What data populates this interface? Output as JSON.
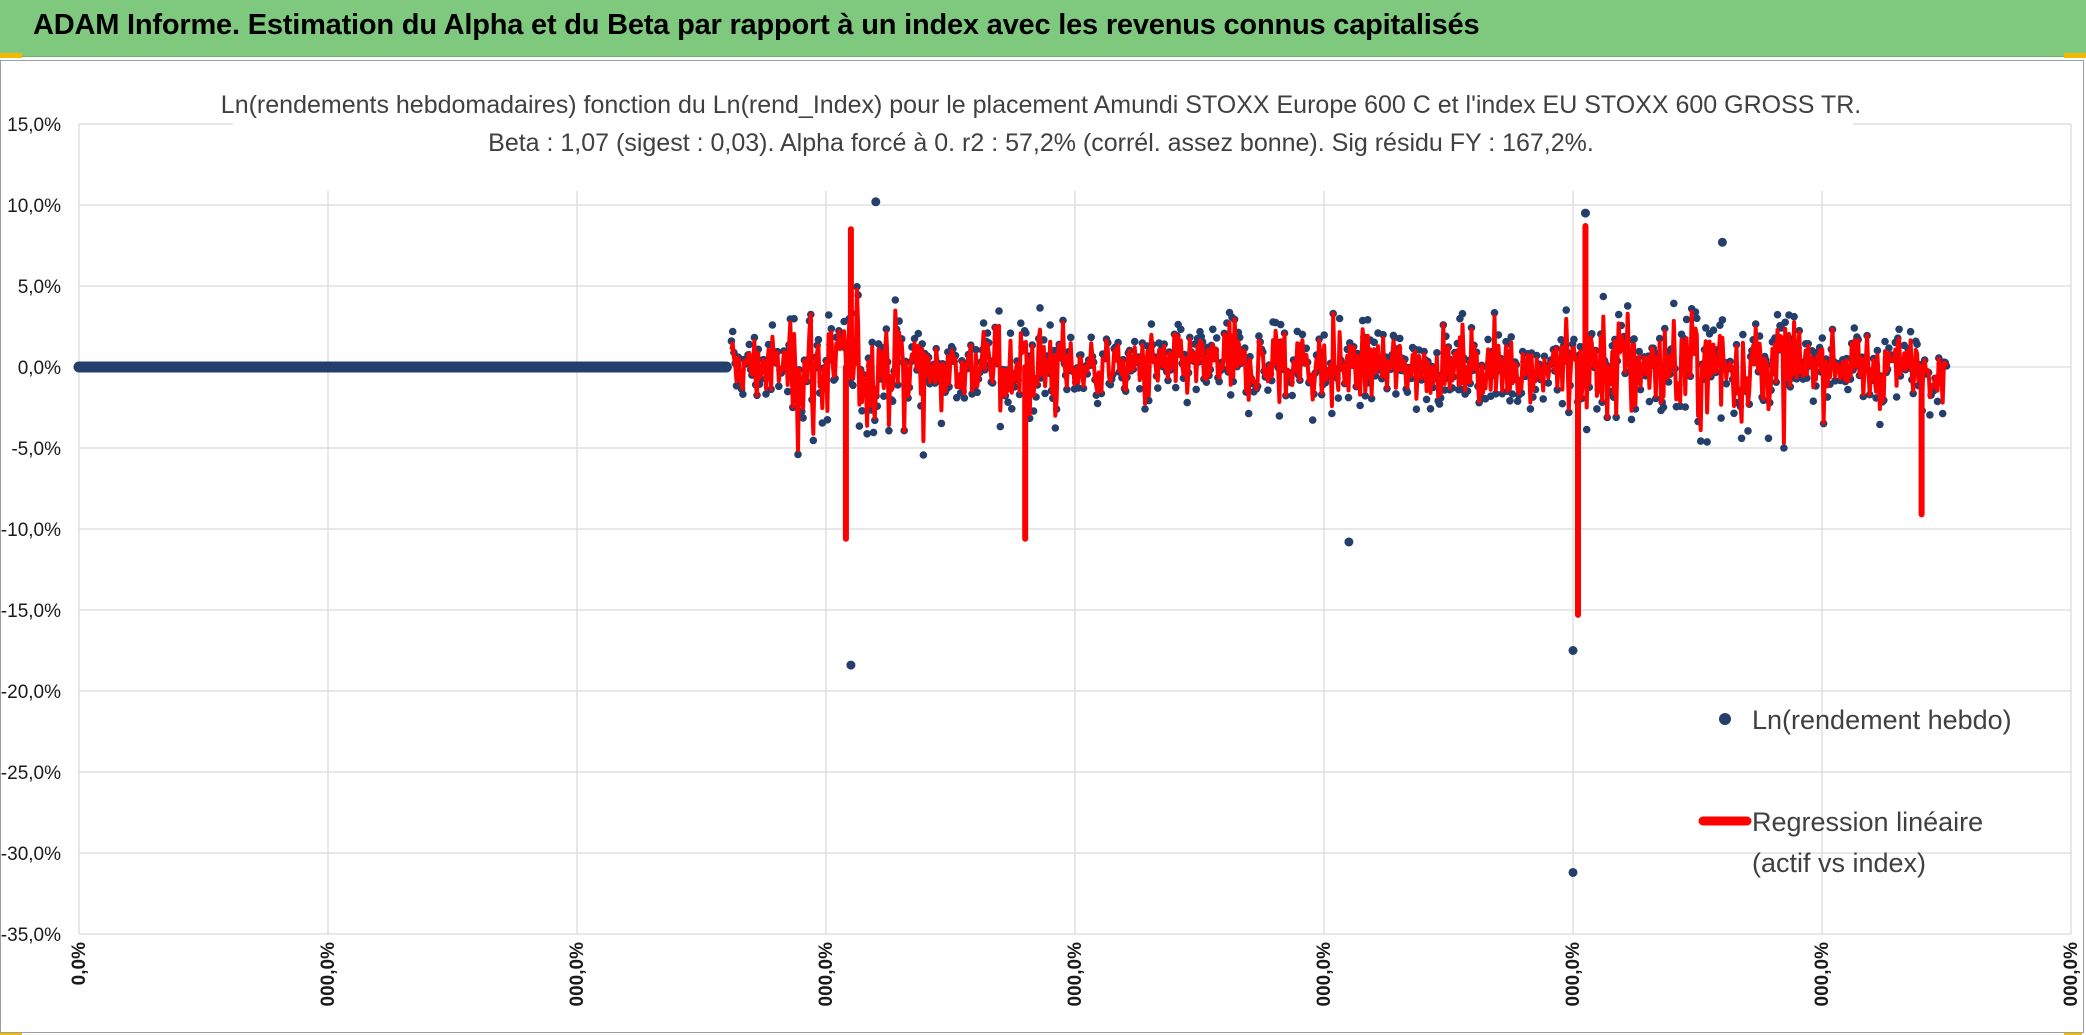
{
  "banner": {
    "title": "ADAM Informe. Estimation du Alpha et du Beta par rapport à un index avec les revenus connus capitalisés"
  },
  "colors": {
    "banner_bg": "#7fc97f",
    "scatter": "#243f6b",
    "regression": "#ff0000",
    "grid": "#d9d9d9",
    "text": "#404040"
  },
  "chart_data": {
    "type": "scatter",
    "title": "Ln(rendements hebdomadaires) fonction du Ln(rend_Index) pour le placement Amundi STOXX Europe 600 C et l'index EU STOXX 600 GROSS TR.",
    "subtitle": "Beta : 1,07 (sigest : 0,03). Alpha forcé à 0. r2 : 57,2% (corrél. assez bonne). Sig résidu FY : 167,2%.",
    "ylim": [
      -35,
      15
    ],
    "y_unit": "%",
    "ytick_labels": [
      "15,0%",
      "10,0%",
      "5,0%",
      "0,0%",
      "-5,0%",
      "-10,0%",
      "-15,0%",
      "-20,0%",
      "-25,0%",
      "-30,0%",
      "-35,0%"
    ],
    "xtick_labels": [
      "0,0%",
      "000,0%",
      "000,0%",
      "000,0%",
      "000,0%",
      "000,0%",
      "000,0%",
      "000,0%",
      "000,0%"
    ],
    "grid": true,
    "legend_position": "right",
    "series": [
      {
        "name": "Ln(rendement hebdo)",
        "kind": "scatter",
        "flat_segment": {
          "x_from_tick": 0,
          "x_to_tick": 2.6,
          "y": 0
        },
        "notable_points": [
          {
            "x_tick": 3.1,
            "y": -18.4
          },
          {
            "x_tick": 3.2,
            "y": 10.2
          },
          {
            "x_tick": 6.0,
            "y": -31.2
          },
          {
            "x_tick": 6.0,
            "y": -17.5
          },
          {
            "x_tick": 6.05,
            "y": 9.5
          },
          {
            "x_tick": 5.1,
            "y": -10.8
          },
          {
            "x_tick": 6.6,
            "y": 7.7
          }
        ]
      },
      {
        "name": "Regression linéaire",
        "name_line2": "(actif vs index)",
        "kind": "line",
        "notable_extremes": [
          {
            "x_tick": 3.08,
            "y": -10.6
          },
          {
            "x_tick": 3.1,
            "y": 8.5
          },
          {
            "x_tick": 3.8,
            "y": -10.6
          },
          {
            "x_tick": 6.02,
            "y": -15.3
          },
          {
            "x_tick": 6.05,
            "y": 8.7
          },
          {
            "x_tick": 7.4,
            "y": -9.1
          }
        ]
      }
    ]
  }
}
